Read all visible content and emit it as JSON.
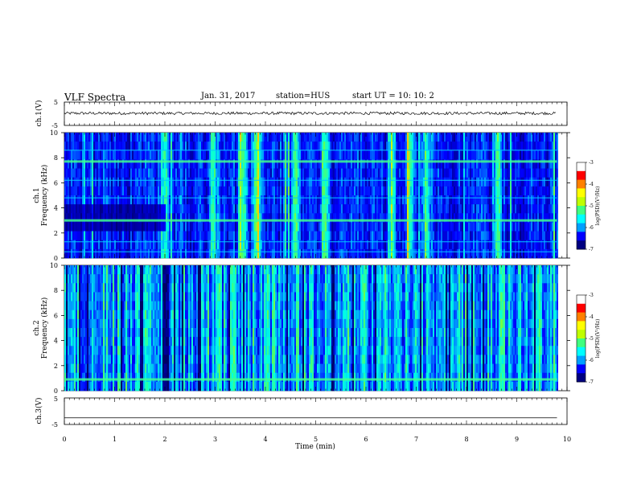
{
  "header": {
    "title": "VLF Spectra",
    "date": "Jan. 31, 2017",
    "station": "station=HUS",
    "start": "start UT = 10: 10: 2"
  },
  "colorbar": {
    "label": "log(PSD)(V²/Hz)",
    "ticks": [
      "-3",
      "-4",
      "-5",
      "-6",
      "-7"
    ],
    "colors": [
      "#000080",
      "#0000ff",
      "#00a0ff",
      "#00ffff",
      "#40ff80",
      "#c0ff00",
      "#ffff00",
      "#ff8000",
      "#ff0000",
      "#ffffff"
    ]
  },
  "chart_data": [
    {
      "type": "line",
      "ylabel": "ch.1(V)",
      "ylim": [
        -5,
        5
      ],
      "yticks": [
        "5",
        "-5"
      ],
      "xlim": [
        0,
        10
      ]
    },
    {
      "type": "heatmap",
      "ylabel": "ch.1",
      "ylabel2": "Frequency (kHz)",
      "ylim": [
        0,
        10
      ],
      "yticks": [
        "10",
        "8",
        "6",
        "4",
        "2",
        "0"
      ],
      "xlim": [
        0,
        10
      ],
      "data_end_min": 9.8,
      "horizontal_lines_khz": [
        7.7,
        3.0,
        0.5,
        1.3,
        6.2,
        8.6,
        4.8
      ],
      "bright_vertical_times_min": [
        2.0,
        2.95,
        3.55,
        3.8,
        4.6,
        5.15,
        6.5,
        6.85,
        7.2,
        8.6
      ]
    },
    {
      "type": "heatmap",
      "ylabel": "ch.2",
      "ylabel2": "Frequency (kHz)",
      "ylim": [
        0,
        10
      ],
      "yticks": [
        "10",
        "8",
        "6",
        "4",
        "2",
        "0"
      ],
      "xlim": [
        0,
        10
      ],
      "data_end_min": 9.8,
      "horizontal_lines_khz": [
        0.9
      ],
      "active_intervals_min": [
        [
          0.0,
          1.95
        ],
        [
          2.05,
          9.8
        ]
      ]
    },
    {
      "type": "line",
      "ylabel": "ch.3(V)",
      "ylim": [
        -5,
        5
      ],
      "yticks": [
        "5",
        "-5"
      ],
      "xlim": [
        0,
        10
      ],
      "constant_value": -2.5,
      "xlabel": "Time (min)",
      "xticks": [
        "0",
        "1",
        "2",
        "3",
        "4",
        "5",
        "6",
        "7",
        "8",
        "9",
        "10"
      ]
    }
  ]
}
